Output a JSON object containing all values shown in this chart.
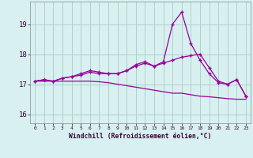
{
  "x": [
    0,
    1,
    2,
    3,
    4,
    5,
    6,
    7,
    8,
    9,
    10,
    11,
    12,
    13,
    14,
    15,
    16,
    17,
    18,
    19,
    20,
    21,
    22,
    23
  ],
  "line_peak": [
    17.1,
    17.15,
    17.1,
    17.2,
    17.25,
    17.35,
    17.45,
    17.4,
    17.35,
    17.35,
    17.45,
    17.65,
    17.75,
    17.6,
    17.75,
    19.0,
    19.4,
    18.35,
    17.8,
    17.35,
    17.05,
    17.0,
    17.15,
    16.6
  ],
  "line_mid": [
    17.1,
    17.15,
    17.1,
    17.2,
    17.25,
    17.3,
    17.4,
    17.35,
    17.35,
    17.35,
    17.45,
    17.6,
    17.7,
    17.6,
    17.7,
    17.8,
    17.9,
    17.95,
    18.0,
    17.55,
    17.1,
    17.0,
    17.15,
    16.6
  ],
  "line_flat": [
    17.1,
    17.1,
    17.1,
    17.1,
    17.1,
    17.1,
    17.1,
    17.08,
    17.05,
    17.0,
    16.95,
    16.9,
    16.85,
    16.8,
    16.75,
    16.7,
    16.7,
    16.65,
    16.6,
    16.58,
    16.55,
    16.52,
    16.5,
    16.5
  ],
  "bg_color": "#d8f0f0",
  "line_color": "#990099",
  "grid_color": "#aacccc",
  "xlabel": "Windchill (Refroidissement éolien,°C)",
  "yticks": [
    16,
    17,
    18,
    19
  ],
  "xlim": [
    -0.5,
    23.5
  ],
  "ylim": [
    15.7,
    19.75
  ]
}
